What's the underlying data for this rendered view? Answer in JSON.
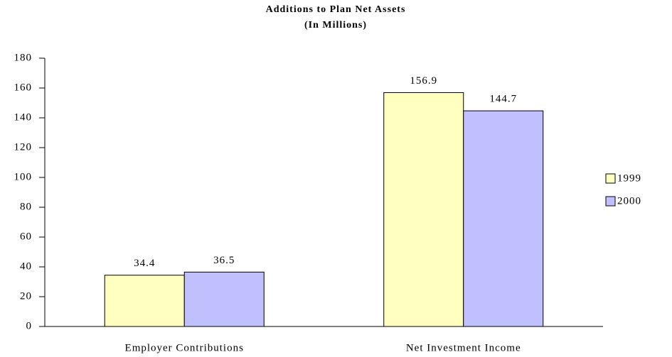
{
  "chart_data": {
    "type": "bar",
    "title": "Additions to Plan Net Assets",
    "subtitle": "(In Millions)",
    "categories": [
      "Employer Contributions",
      "Net Investment Income"
    ],
    "series": [
      {
        "name": "1999",
        "color": "#ffffc0",
        "values": [
          34.4,
          156.9
        ]
      },
      {
        "name": "2000",
        "color": "#c0c0ff",
        "values": [
          36.5,
          144.7
        ]
      }
    ],
    "ylim": [
      0,
      180
    ],
    "yticks": [
      0,
      20,
      40,
      60,
      80,
      100,
      120,
      140,
      160,
      180
    ],
    "legend": "right",
    "grid": false
  }
}
